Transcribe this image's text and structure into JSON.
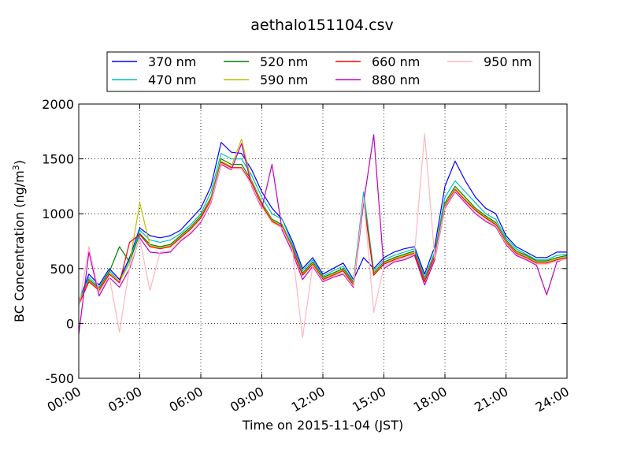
{
  "chart_data": {
    "type": "line",
    "title": "aethalo151104.csv",
    "xlabel": "Time on 2015-11-04 (JST)",
    "ylabel": "BC Concentration (ng/m",
    "ylabel_superscript": "3",
    "ylabel_close": ")",
    "xlim": [
      "00:00",
      "24:00"
    ],
    "ylim": [
      -500,
      2000
    ],
    "xticks": [
      "00:00",
      "03:00",
      "06:00",
      "09:00",
      "12:00",
      "15:00",
      "18:00",
      "21:00",
      "24:00"
    ],
    "yticks": [
      "-500",
      "0",
      "500",
      "1000",
      "1500",
      "2000"
    ],
    "grid": true,
    "legend_placement": "top-center",
    "series": [
      {
        "name": "370 nm",
        "color": "#0000ff",
        "x": [
          "00:00",
          "00:30",
          "01:00",
          "01:30",
          "02:00",
          "02:30",
          "03:00",
          "03:30",
          "04:00",
          "04:30",
          "05:00",
          "05:30",
          "06:00",
          "06:30",
          "07:00",
          "07:30",
          "08:00",
          "08:30",
          "09:00",
          "09:30",
          "10:00",
          "10:30",
          "11:00",
          "11:30",
          "12:00",
          "12:30",
          "13:00",
          "13:30",
          "14:00",
          "14:30",
          "15:00",
          "15:30",
          "16:00",
          "16:30",
          "17:00",
          "17:30",
          "18:00",
          "18:30",
          "19:00",
          "19:30",
          "20:00",
          "20:30",
          "21:00",
          "21:30",
          "22:00",
          "22:30",
          "23:00",
          "23:30",
          "24:00"
        ],
        "values": [
          200,
          450,
          350,
          500,
          400,
          600,
          870,
          800,
          780,
          800,
          850,
          950,
          1050,
          1250,
          1650,
          1560,
          1550,
          1400,
          1200,
          1050,
          950,
          750,
          500,
          600,
          450,
          500,
          550,
          400,
          600,
          500,
          600,
          650,
          680,
          700,
          450,
          700,
          1250,
          1480,
          1300,
          1150,
          1050,
          1000,
          800,
          700,
          650,
          600,
          600,
          650,
          650
        ]
      },
      {
        "name": "470 nm",
        "color": "#00bfbf",
        "x": [
          "00:00",
          "00:30",
          "01:00",
          "01:30",
          "02:00",
          "02:30",
          "03:00",
          "03:30",
          "04:00",
          "04:30",
          "05:00",
          "05:30",
          "06:00",
          "06:30",
          "07:00",
          "07:30",
          "08:00",
          "08:30",
          "09:00",
          "09:30",
          "10:00",
          "10:30",
          "11:00",
          "11:30",
          "12:00",
          "12:30",
          "13:00",
          "13:30",
          "14:00",
          "14:30",
          "15:00",
          "15:30",
          "16:00",
          "16:30",
          "17:00",
          "17:30",
          "18:00",
          "18:30",
          "19:00",
          "19:30",
          "20:00",
          "20:30",
          "21:00",
          "21:30",
          "22:00",
          "22:30",
          "23:00",
          "23:30",
          "24:00"
        ],
        "values": [
          200,
          420,
          330,
          480,
          380,
          580,
          850,
          760,
          740,
          760,
          820,
          900,
          1000,
          1200,
          1550,
          1500,
          1500,
          1350,
          1150,
          1000,
          950,
          720,
          480,
          580,
          430,
          480,
          520,
          380,
          1200,
          480,
          580,
          620,
          650,
          680,
          420,
          650,
          1150,
          1300,
          1200,
          1100,
          1000,
          950,
          780,
          680,
          630,
          580,
          580,
          620,
          630
        ]
      },
      {
        "name": "520 nm",
        "color": "#008000",
        "x": [
          "00:00",
          "00:30",
          "01:00",
          "01:30",
          "02:00",
          "02:30",
          "03:00",
          "03:30",
          "04:00",
          "04:30",
          "05:00",
          "05:30",
          "06:00",
          "06:30",
          "07:00",
          "07:30",
          "08:00",
          "08:30",
          "09:00",
          "09:30",
          "10:00",
          "10:30",
          "11:00",
          "11:30",
          "12:00",
          "12:30",
          "13:00",
          "13:30",
          "14:00",
          "14:30",
          "15:00",
          "15:30",
          "16:00",
          "16:30",
          "17:00",
          "17:30",
          "18:00",
          "18:30",
          "19:00",
          "19:30",
          "20:00",
          "20:30",
          "21:00",
          "21:30",
          "22:00",
          "22:30",
          "23:00",
          "23:30",
          "24:00"
        ],
        "values": [
          180,
          400,
          320,
          470,
          700,
          560,
          820,
          720,
          700,
          720,
          800,
          880,
          980,
          1150,
          1500,
          1450,
          1450,
          1300,
          1100,
          950,
          900,
          700,
          460,
          560,
          420,
          460,
          500,
          370,
          1150,
          460,
          560,
          600,
          630,
          660,
          400,
          630,
          1100,
          1250,
          1150,
          1050,
          980,
          920,
          760,
          660,
          620,
          570,
          570,
          600,
          620
        ]
      },
      {
        "name": "590 nm",
        "color": "#bfbf00",
        "x": [
          "00:00",
          "00:30",
          "01:00",
          "01:30",
          "02:00",
          "02:30",
          "03:00",
          "03:30",
          "04:00",
          "04:30",
          "05:00",
          "05:30",
          "06:00",
          "06:30",
          "07:00",
          "07:30",
          "08:00",
          "08:30",
          "09:00",
          "09:30",
          "10:00",
          "10:30",
          "11:00",
          "11:30",
          "12:00",
          "12:30",
          "13:00",
          "13:30",
          "14:00",
          "14:30",
          "15:00",
          "15:30",
          "16:00",
          "16:30",
          "17:00",
          "17:30",
          "18:00",
          "18:30",
          "19:00",
          "19:30",
          "20:00",
          "20:30",
          "21:00",
          "21:30",
          "22:00",
          "22:30",
          "23:00",
          "23:30",
          "24:00"
        ],
        "values": [
          180,
          390,
          310,
          460,
          380,
          550,
          1100,
          710,
          690,
          710,
          790,
          870,
          970,
          1140,
          1480,
          1430,
          1680,
          1290,
          1090,
          940,
          890,
          690,
          450,
          550,
          410,
          450,
          490,
          360,
          1130,
          450,
          550,
          590,
          620,
          650,
          390,
          620,
          1080,
          1230,
          1130,
          1040,
          970,
          910,
          750,
          650,
          610,
          560,
          560,
          590,
          610
        ]
      },
      {
        "name": "660 nm",
        "color": "#ff0000",
        "x": [
          "00:00",
          "00:30",
          "01:00",
          "01:30",
          "02:00",
          "02:30",
          "03:00",
          "03:30",
          "04:00",
          "04:30",
          "05:00",
          "05:30",
          "06:00",
          "06:30",
          "07:00",
          "07:30",
          "08:00",
          "08:30",
          "09:00",
          "09:30",
          "10:00",
          "10:30",
          "11:00",
          "11:30",
          "12:00",
          "12:30",
          "13:00",
          "13:30",
          "14:00",
          "14:30",
          "15:00",
          "15:30",
          "16:00",
          "16:30",
          "17:00",
          "17:30",
          "18:00",
          "18:30",
          "19:00",
          "19:30",
          "20:00",
          "20:30",
          "21:00",
          "21:30",
          "22:00",
          "22:30",
          "23:00",
          "23:30",
          "24:00"
        ],
        "values": [
          170,
          380,
          300,
          450,
          370,
          740,
          810,
          700,
          680,
          700,
          780,
          860,
          960,
          1130,
          1470,
          1420,
          1420,
          1280,
          1080,
          930,
          880,
          680,
          440,
          540,
          400,
          440,
          480,
          350,
          1120,
          440,
          540,
          580,
          610,
          640,
          380,
          610,
          1070,
          1220,
          1120,
          1030,
          960,
          900,
          740,
          640,
          600,
          550,
          550,
          580,
          600
        ]
      },
      {
        "name": "880 nm",
        "color": "#bf00bf",
        "x": [
          "00:00",
          "00:30",
          "01:00",
          "01:30",
          "02:00",
          "02:30",
          "03:00",
          "03:30",
          "04:00",
          "04:30",
          "05:00",
          "05:30",
          "06:00",
          "06:30",
          "07:00",
          "07:30",
          "08:00",
          "08:30",
          "09:00",
          "09:30",
          "10:00",
          "10:30",
          "11:00",
          "11:30",
          "12:00",
          "12:30",
          "13:00",
          "13:30",
          "14:00",
          "14:30",
          "15:00",
          "15:30",
          "16:00",
          "16:30",
          "17:00",
          "17:30",
          "18:00",
          "18:30",
          "19:00",
          "19:30",
          "20:00",
          "20:30",
          "21:00",
          "21:30",
          "22:00",
          "22:30",
          "23:00",
          "23:30",
          "24:00"
        ],
        "values": [
          -100,
          650,
          250,
          420,
          330,
          500,
          780,
          650,
          640,
          650,
          750,
          820,
          920,
          1100,
          1450,
          1400,
          1640,
          1250,
          1050,
          1450,
          850,
          650,
          400,
          520,
          380,
          420,
          450,
          330,
          1100,
          1720,
          500,
          560,
          580,
          620,
          350,
          580,
          1050,
          1200,
          1100,
          1000,
          930,
          880,
          720,
          620,
          580,
          530,
          260,
          560,
          600
        ]
      },
      {
        "name": "950 nm",
        "color": "#ffb6c1",
        "x": [
          "00:00",
          "00:30",
          "01:00",
          "01:30",
          "02:00",
          "02:30",
          "03:00",
          "03:30",
          "04:00",
          "04:30",
          "05:00",
          "05:30",
          "06:00",
          "06:30",
          "07:00",
          "07:30",
          "08:00",
          "08:30",
          "09:00",
          "09:30",
          "10:00",
          "10:30",
          "11:00",
          "11:30",
          "12:00",
          "12:30",
          "13:00",
          "13:30",
          "14:00",
          "14:30",
          "15:00",
          "15:30",
          "16:00",
          "16:30",
          "17:00",
          "17:30",
          "18:00",
          "18:30",
          "19:00",
          "19:30",
          "20:00",
          "20:30",
          "21:00",
          "21:30",
          "22:00",
          "22:30",
          "23:00",
          "23:30",
          "24:00"
        ],
        "values": [
          150,
          700,
          280,
          430,
          -80,
          520,
          770,
          300,
          650,
          660,
          760,
          830,
          930,
          1110,
          1460,
          1410,
          1410,
          1260,
          1060,
          920,
          870,
          670,
          -130,
          530,
          390,
          430,
          460,
          340,
          1150,
          100,
          520,
          570,
          590,
          630,
          1730,
          590,
          1060,
          1210,
          1110,
          1010,
          940,
          890,
          730,
          630,
          590,
          540,
          540,
          570,
          590
        ]
      }
    ]
  }
}
